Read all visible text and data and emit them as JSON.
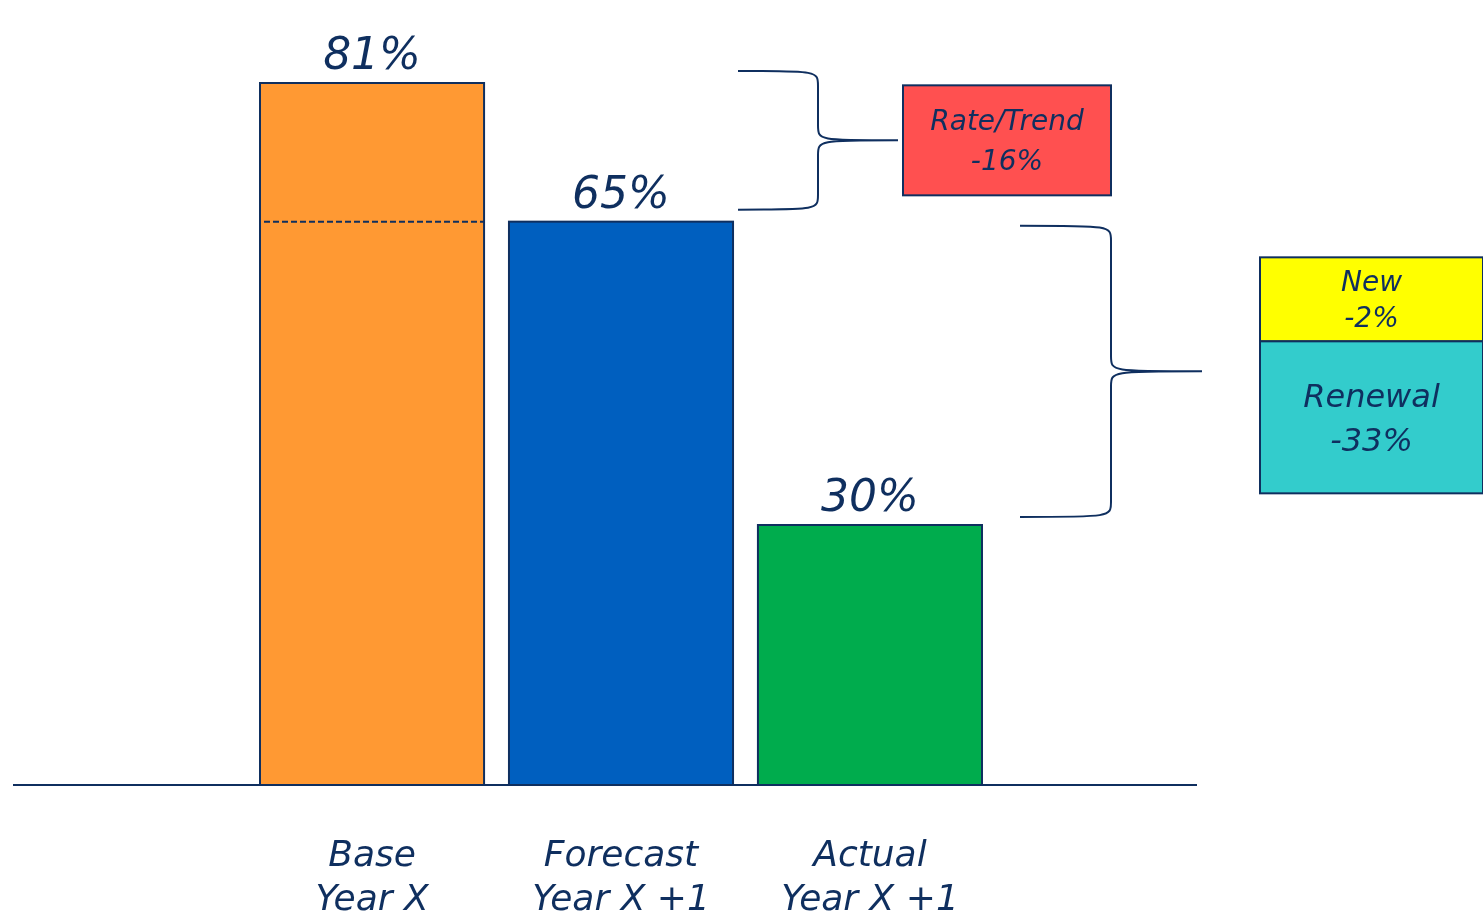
{
  "chart_data": {
    "type": "bar",
    "categories": [
      "Base\nYear X",
      "Forecast\nYear X +1",
      "Actual\nYear X +1"
    ],
    "values": [
      81,
      65,
      30
    ],
    "colors": [
      "#ff9933",
      "#005fbf",
      "#00ac4d"
    ],
    "value_labels": [
      "81%",
      "65%",
      "30%"
    ],
    "ref_lines": [
      {
        "axis": "y",
        "value": 65,
        "line_style": "dashed"
      }
    ],
    "annotations": [
      "Rate/Trend\n-16%",
      "New\n-2%",
      "Renewal\n-33%"
    ]
  }
}
